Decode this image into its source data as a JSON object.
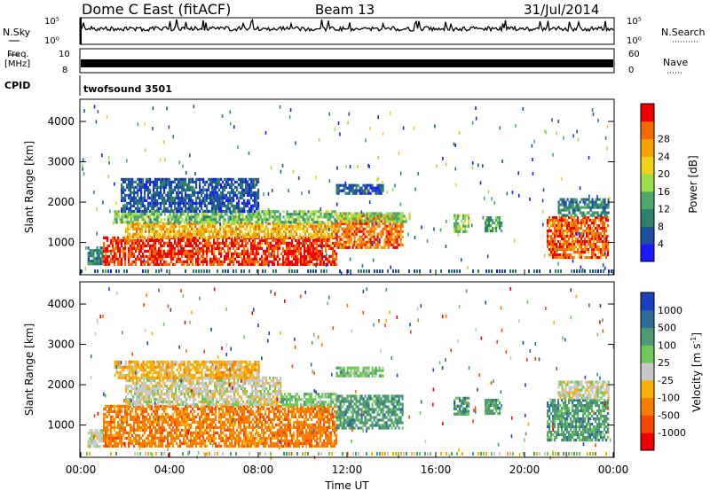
{
  "header": {
    "radar": "Dome C East (fitACF)",
    "beam": "Beam 13",
    "date": "31/Jul/2014"
  },
  "params": {
    "nsky_label": "N.Sky",
    "nsky_top": "10^5",
    "nsky_bottom": "10^0",
    "nsearch_label": "N.Search",
    "nsearch_top": "10^5",
    "nsearch_bottom": "10^0",
    "freq_label": "Freq.",
    "freq_unit": "[MHz]",
    "freq_top": "10",
    "freq_bottom": "8",
    "nave_label": "Nave",
    "nave_top": "60",
    "nave_bottom": "0",
    "cpid_label": "CPID",
    "cpid_value": "twofsound 3501"
  },
  "colors": {
    "power": [
      "#1a1aff",
      "#1f4fa0",
      "#2f7f6f",
      "#4fa86a",
      "#9be04b",
      "#f0d21e",
      "#f7a000",
      "#f56a00",
      "#f00000"
    ],
    "velocity": [
      "#1a3fbf",
      "#2e6d95",
      "#4f9a73",
      "#70c858",
      "#c8c8c8",
      "#f8b000",
      "#f77c00",
      "#f54a00",
      "#f00000"
    ]
  },
  "chart_data": [
    {
      "type": "heatmap",
      "name": "power",
      "ylabel": "Slant Range [km]",
      "yticks": [
        "1000",
        "2000",
        "3000",
        "4000"
      ],
      "ylim": [
        200,
        4550
      ],
      "xlim_hours": [
        0,
        24
      ],
      "colorbar_label": "Power [dB]",
      "colorbar_ticks": [
        "4",
        "8",
        "12",
        "16",
        "20",
        "24",
        "28"
      ],
      "colorbar_range": [
        0,
        32
      ],
      "regions": [
        {
          "t0": 0.3,
          "t1": 1.0,
          "r0": 500,
          "r1": 900,
          "v": 10
        },
        {
          "t0": 1.0,
          "t1": 11.5,
          "r0": 450,
          "r1": 1150,
          "v": 29
        },
        {
          "t0": 2.0,
          "t1": 11.5,
          "r0": 1150,
          "r1": 1500,
          "v": 22
        },
        {
          "t0": 1.5,
          "t1": 11.5,
          "r0": 1500,
          "r1": 1800,
          "v": 14
        },
        {
          "t0": 1.8,
          "t1": 8.0,
          "r0": 1800,
          "r1": 2600,
          "v": 6
        },
        {
          "t0": 11.5,
          "t1": 14.5,
          "r0": 900,
          "r1": 1700,
          "v": 26
        },
        {
          "t0": 11.5,
          "t1": 14.8,
          "r0": 1500,
          "r1": 1750,
          "v": 15
        },
        {
          "t0": 11.5,
          "t1": 13.6,
          "r0": 2200,
          "r1": 2450,
          "v": 6
        },
        {
          "t0": 16.8,
          "t1": 17.5,
          "r0": 1300,
          "r1": 1700,
          "v": 15
        },
        {
          "t0": 18.2,
          "t1": 19.0,
          "r0": 1300,
          "r1": 1650,
          "v": 12
        },
        {
          "t0": 21.0,
          "t1": 23.8,
          "r0": 600,
          "r1": 1650,
          "v": 27
        },
        {
          "t0": 21.5,
          "t1": 23.8,
          "r0": 1650,
          "r1": 2100,
          "v": 9
        }
      ]
    },
    {
      "type": "heatmap",
      "name": "velocity",
      "ylabel": "Slant Range [km]",
      "yticks": [
        "1000",
        "2000",
        "3000",
        "4000"
      ],
      "ylim": [
        200,
        4550
      ],
      "xlim_hours": [
        0,
        24
      ],
      "xticks": [
        "00:00",
        "04:00",
        "08:00",
        "12:00",
        "16:00",
        "20:00",
        "00:00"
      ],
      "xlabel": "Time UT",
      "colorbar_label": "Velocity [m s",
      "colorbar_sup": "-1",
      "colorbar_ticks": [
        "1000",
        "500",
        "100",
        "25",
        "-25",
        "-100",
        "-500",
        "-1000"
      ],
      "regions": [
        {
          "t0": 0.3,
          "t1": 1.0,
          "r0": 500,
          "r1": 900,
          "v": 4
        },
        {
          "t0": 1.0,
          "t1": 11.5,
          "r0": 450,
          "r1": 1500,
          "v": 6
        },
        {
          "t0": 2.0,
          "t1": 9.0,
          "r0": 1500,
          "r1": 2200,
          "v": 4
        },
        {
          "t0": 1.5,
          "t1": 8.0,
          "r0": 2200,
          "r1": 2600,
          "v": 5
        },
        {
          "t0": 9.0,
          "t1": 11.5,
          "r0": 1500,
          "r1": 1800,
          "v": 3
        },
        {
          "t0": 11.5,
          "t1": 14.5,
          "r0": 900,
          "r1": 1750,
          "v": 2
        },
        {
          "t0": 11.5,
          "t1": 13.6,
          "r0": 2200,
          "r1": 2450,
          "v": 3
        },
        {
          "t0": 16.8,
          "t1": 17.5,
          "r0": 1300,
          "r1": 1700,
          "v": 2
        },
        {
          "t0": 18.2,
          "t1": 19.0,
          "r0": 1300,
          "r1": 1650,
          "v": 2
        },
        {
          "t0": 21.0,
          "t1": 23.8,
          "r0": 600,
          "r1": 1650,
          "v": 2
        },
        {
          "t0": 21.5,
          "t1": 23.8,
          "r0": 1650,
          "r1": 2100,
          "v": 4
        }
      ]
    }
  ]
}
